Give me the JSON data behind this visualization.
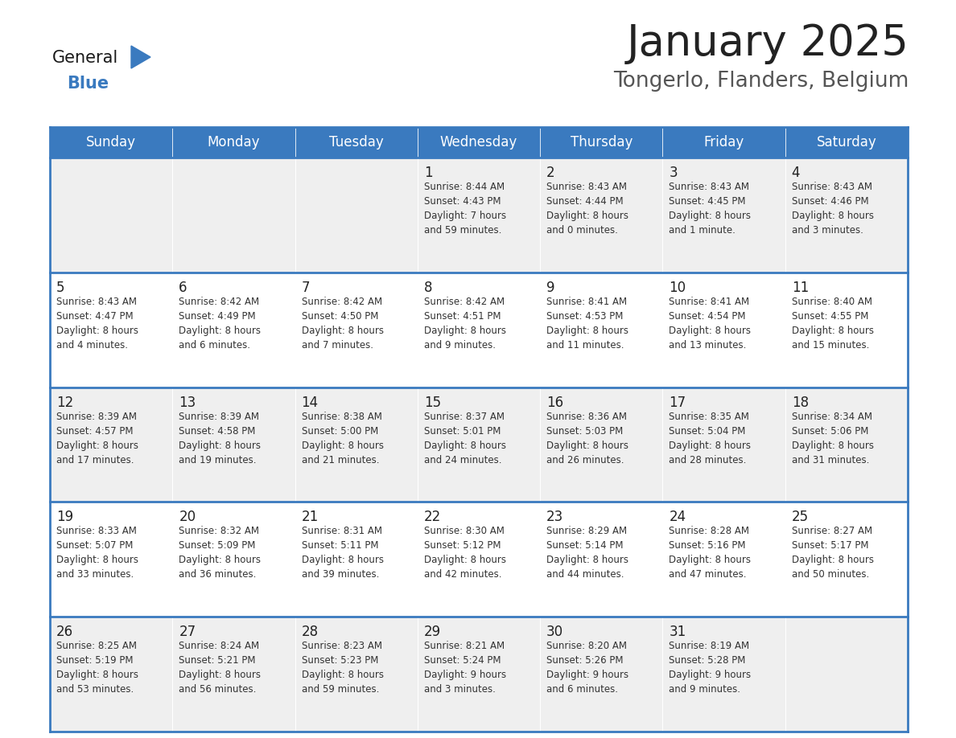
{
  "title": "January 2025",
  "subtitle": "Tongerlo, Flanders, Belgium",
  "header_color": "#3a7abf",
  "header_text_color": "#ffffff",
  "weekdays": [
    "Sunday",
    "Monday",
    "Tuesday",
    "Wednesday",
    "Thursday",
    "Friday",
    "Saturday"
  ],
  "row_colors": [
    "#efefef",
    "#ffffff"
  ],
  "border_color": "#3a7abf",
  "text_color": "#333333",
  "day_num_color": "#222222",
  "title_color": "#222222",
  "subtitle_color": "#555555",
  "calendar": [
    [
      {
        "day": "",
        "info": ""
      },
      {
        "day": "",
        "info": ""
      },
      {
        "day": "",
        "info": ""
      },
      {
        "day": "1",
        "info": "Sunrise: 8:44 AM\nSunset: 4:43 PM\nDaylight: 7 hours\nand 59 minutes."
      },
      {
        "day": "2",
        "info": "Sunrise: 8:43 AM\nSunset: 4:44 PM\nDaylight: 8 hours\nand 0 minutes."
      },
      {
        "day": "3",
        "info": "Sunrise: 8:43 AM\nSunset: 4:45 PM\nDaylight: 8 hours\nand 1 minute."
      },
      {
        "day": "4",
        "info": "Sunrise: 8:43 AM\nSunset: 4:46 PM\nDaylight: 8 hours\nand 3 minutes."
      }
    ],
    [
      {
        "day": "5",
        "info": "Sunrise: 8:43 AM\nSunset: 4:47 PM\nDaylight: 8 hours\nand 4 minutes."
      },
      {
        "day": "6",
        "info": "Sunrise: 8:42 AM\nSunset: 4:49 PM\nDaylight: 8 hours\nand 6 minutes."
      },
      {
        "day": "7",
        "info": "Sunrise: 8:42 AM\nSunset: 4:50 PM\nDaylight: 8 hours\nand 7 minutes."
      },
      {
        "day": "8",
        "info": "Sunrise: 8:42 AM\nSunset: 4:51 PM\nDaylight: 8 hours\nand 9 minutes."
      },
      {
        "day": "9",
        "info": "Sunrise: 8:41 AM\nSunset: 4:53 PM\nDaylight: 8 hours\nand 11 minutes."
      },
      {
        "day": "10",
        "info": "Sunrise: 8:41 AM\nSunset: 4:54 PM\nDaylight: 8 hours\nand 13 minutes."
      },
      {
        "day": "11",
        "info": "Sunrise: 8:40 AM\nSunset: 4:55 PM\nDaylight: 8 hours\nand 15 minutes."
      }
    ],
    [
      {
        "day": "12",
        "info": "Sunrise: 8:39 AM\nSunset: 4:57 PM\nDaylight: 8 hours\nand 17 minutes."
      },
      {
        "day": "13",
        "info": "Sunrise: 8:39 AM\nSunset: 4:58 PM\nDaylight: 8 hours\nand 19 minutes."
      },
      {
        "day": "14",
        "info": "Sunrise: 8:38 AM\nSunset: 5:00 PM\nDaylight: 8 hours\nand 21 minutes."
      },
      {
        "day": "15",
        "info": "Sunrise: 8:37 AM\nSunset: 5:01 PM\nDaylight: 8 hours\nand 24 minutes."
      },
      {
        "day": "16",
        "info": "Sunrise: 8:36 AM\nSunset: 5:03 PM\nDaylight: 8 hours\nand 26 minutes."
      },
      {
        "day": "17",
        "info": "Sunrise: 8:35 AM\nSunset: 5:04 PM\nDaylight: 8 hours\nand 28 minutes."
      },
      {
        "day": "18",
        "info": "Sunrise: 8:34 AM\nSunset: 5:06 PM\nDaylight: 8 hours\nand 31 minutes."
      }
    ],
    [
      {
        "day": "19",
        "info": "Sunrise: 8:33 AM\nSunset: 5:07 PM\nDaylight: 8 hours\nand 33 minutes."
      },
      {
        "day": "20",
        "info": "Sunrise: 8:32 AM\nSunset: 5:09 PM\nDaylight: 8 hours\nand 36 minutes."
      },
      {
        "day": "21",
        "info": "Sunrise: 8:31 AM\nSunset: 5:11 PM\nDaylight: 8 hours\nand 39 minutes."
      },
      {
        "day": "22",
        "info": "Sunrise: 8:30 AM\nSunset: 5:12 PM\nDaylight: 8 hours\nand 42 minutes."
      },
      {
        "day": "23",
        "info": "Sunrise: 8:29 AM\nSunset: 5:14 PM\nDaylight: 8 hours\nand 44 minutes."
      },
      {
        "day": "24",
        "info": "Sunrise: 8:28 AM\nSunset: 5:16 PM\nDaylight: 8 hours\nand 47 minutes."
      },
      {
        "day": "25",
        "info": "Sunrise: 8:27 AM\nSunset: 5:17 PM\nDaylight: 8 hours\nand 50 minutes."
      }
    ],
    [
      {
        "day": "26",
        "info": "Sunrise: 8:25 AM\nSunset: 5:19 PM\nDaylight: 8 hours\nand 53 minutes."
      },
      {
        "day": "27",
        "info": "Sunrise: 8:24 AM\nSunset: 5:21 PM\nDaylight: 8 hours\nand 56 minutes."
      },
      {
        "day": "28",
        "info": "Sunrise: 8:23 AM\nSunset: 5:23 PM\nDaylight: 8 hours\nand 59 minutes."
      },
      {
        "day": "29",
        "info": "Sunrise: 8:21 AM\nSunset: 5:24 PM\nDaylight: 9 hours\nand 3 minutes."
      },
      {
        "day": "30",
        "info": "Sunrise: 8:20 AM\nSunset: 5:26 PM\nDaylight: 9 hours\nand 6 minutes."
      },
      {
        "day": "31",
        "info": "Sunrise: 8:19 AM\nSunset: 5:28 PM\nDaylight: 9 hours\nand 9 minutes."
      },
      {
        "day": "",
        "info": ""
      }
    ]
  ]
}
